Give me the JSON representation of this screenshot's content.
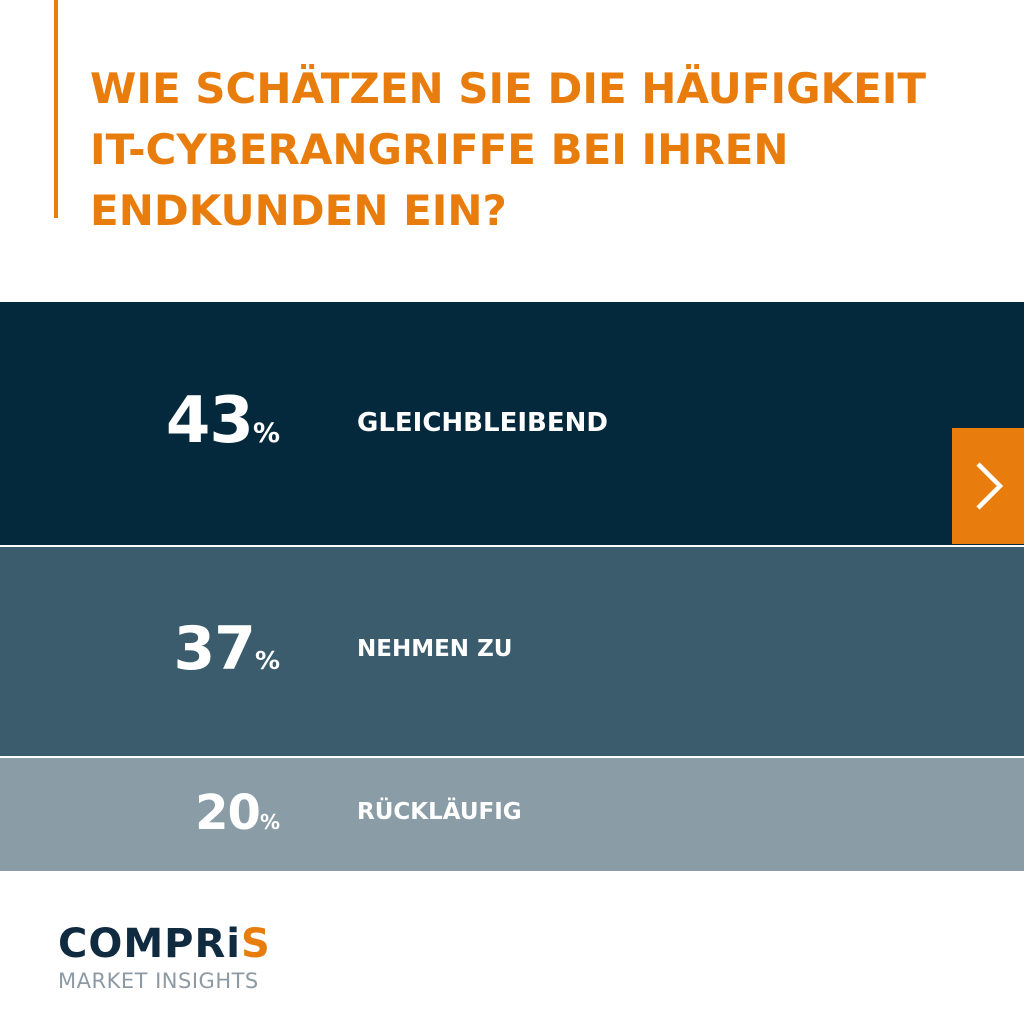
{
  "title": {
    "lines": [
      "WIE SCHÄTZEN SIE DIE HÄUFIGKEIT",
      "IT-CYBERANGRIFFE BEI IHREN",
      "ENDKUNDEN EIN?"
    ]
  },
  "chart_data": {
    "type": "bar",
    "title": "WIE SCHÄTZEN SIE DIE HÄUFIGKEIT IT-CYBERANGRIFFE BEI IHREN ENDKUNDEN EIN?",
    "categories": [
      "GLEICHBLEIBEND",
      "NEHMEN ZU",
      "RÜCKLÄUFIG"
    ],
    "values": [
      43,
      37,
      20
    ],
    "unit": "%",
    "colors": [
      "#04293d",
      "#3a5c6d",
      "#8a9da7"
    ]
  },
  "navigation": {
    "next_icon": "chevron-right-icon",
    "accent_color": "#e87d0d"
  },
  "logo": {
    "word_main": "COMPRi",
    "word_accent": "S",
    "subtitle": "MARKET INSIGHTS"
  }
}
